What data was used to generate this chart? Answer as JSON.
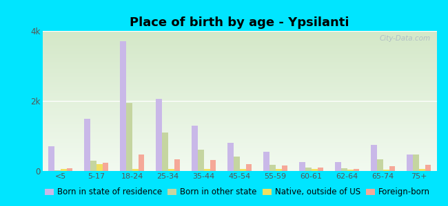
{
  "title": "Place of birth by age - Ypsilanti",
  "categories": [
    "<5",
    "5-17",
    "18-24",
    "25-34",
    "35-44",
    "45-54",
    "55-59",
    "60-61",
    "62-64",
    "65-74",
    "75+"
  ],
  "series_names": [
    "Born in state of residence",
    "Born in other state",
    "Native, outside of US",
    "Foreign-born"
  ],
  "series_data": [
    [
      700,
      1500,
      3700,
      2050,
      1300,
      800,
      550,
      250,
      250,
      750,
      480
    ],
    [
      20,
      300,
      1950,
      1100,
      600,
      420,
      180,
      90,
      80,
      330,
      480
    ],
    [
      50,
      190,
      50,
      50,
      50,
      50,
      50,
      50,
      40,
      40,
      50
    ],
    [
      80,
      230,
      480,
      330,
      320,
      190,
      150,
      90,
      50,
      130,
      180
    ]
  ],
  "colors": [
    "#c9b8e8",
    "#c5d5a0",
    "#f0e060",
    "#f5a898"
  ],
  "ylim": [
    0,
    4000
  ],
  "yticks": [
    0,
    2000,
    4000
  ],
  "ytick_labels": [
    "0",
    "2k",
    "4k"
  ],
  "bg_top": "#d4e8c8",
  "bg_bottom": "#f2faf0",
  "outer_bg": "#00e5ff",
  "bar_width": 0.17,
  "title_fontsize": 13,
  "legend_fontsize": 8.5,
  "watermark": "City-Data.com"
}
